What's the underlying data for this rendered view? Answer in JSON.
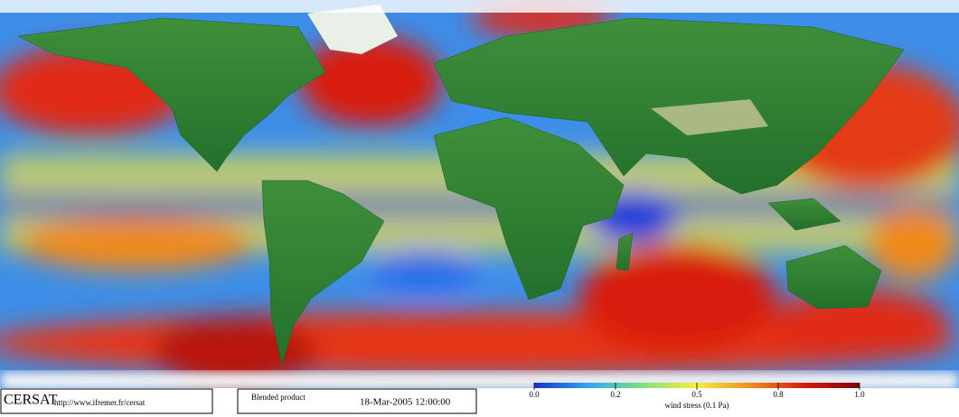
{
  "header": {
    "logo": "CERSAT",
    "url": "http://www.ifremer.fr/cersat",
    "product": "Blended product",
    "timestamp": "18-Mar-2005 12:00:00"
  },
  "colorbar": {
    "label": "wind stress (0.1 Pa)",
    "ticks": [
      {
        "value": 0,
        "label": "0.0"
      },
      {
        "value": 0.2,
        "label": "0.2"
      },
      {
        "value": 0.5,
        "label": "0.5"
      },
      {
        "value": 0.8,
        "label": "0.8"
      },
      {
        "value": 1,
        "label": "1.0"
      }
    ],
    "colors": [
      "#1a2fd0",
      "#2fa8f0",
      "#7fe07f",
      "#f5f03a",
      "#f08a1e",
      "#d41a10",
      "#7a0808"
    ]
  }
}
